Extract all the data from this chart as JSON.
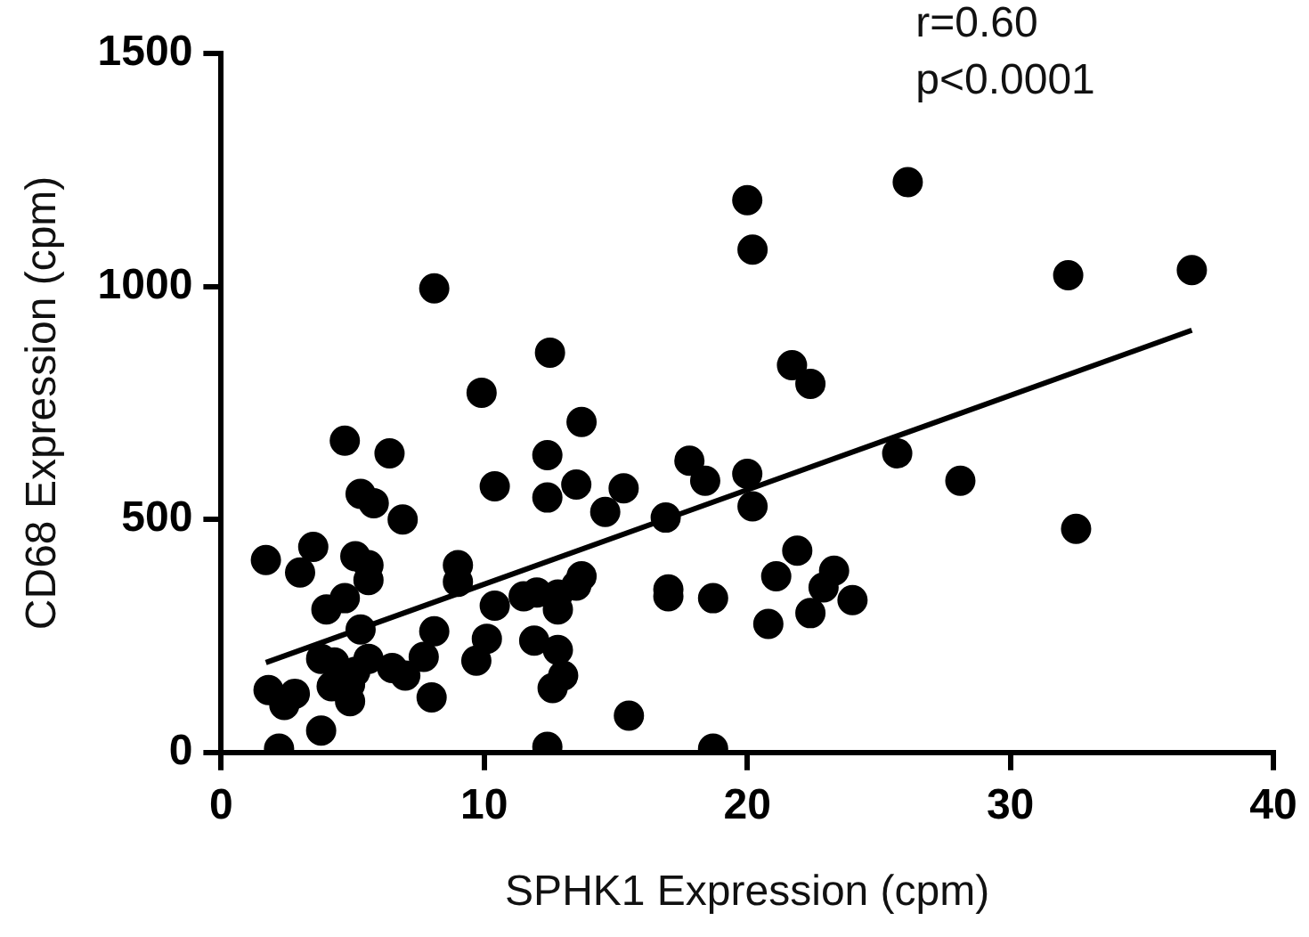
{
  "chart_data": {
    "type": "scatter",
    "xlabel": "SPHK1 Expression (cpm)",
    "ylabel": "CD68 Expression (cpm)",
    "xlim": [
      0,
      40
    ],
    "xticks": [
      0,
      10,
      20,
      30,
      40
    ],
    "ylim": [
      0,
      1500
    ],
    "yticks": [
      0,
      500,
      1000,
      1500
    ],
    "grid": false,
    "legend": false,
    "marker": "circle",
    "annotations": [
      "r=0.60",
      "p<0.0001"
    ],
    "series": [
      {
        "color": "#000000",
        "x": [
          20.0,
          20.2,
          8.1,
          12.5,
          9.9,
          13.7,
          4.7,
          6.4,
          12.4,
          17.8,
          18.4,
          20.0,
          10.4,
          12.4,
          13.5,
          15.3,
          5.3,
          5.8,
          6.9,
          14.6,
          16.9,
          20.2,
          1.7,
          3.5,
          3.0,
          5.1,
          5.6,
          5.6,
          9.0,
          9.0,
          13.7,
          13.5,
          17.0,
          17.0,
          18.7,
          4.0,
          4.7,
          10.4,
          11.5,
          12.0,
          12.8,
          12.8,
          5.3,
          8.1,
          7.7,
          10.1,
          11.9,
          9.7,
          12.8,
          13.0,
          12.6,
          3.8,
          4.3,
          5.6,
          5.1,
          6.5,
          7.0,
          4.2,
          4.9,
          4.9,
          1.8,
          2.8,
          2.4,
          8.0,
          3.8,
          15.5,
          2.2,
          12.4,
          18.7,
          26.1,
          32.2,
          36.9,
          21.7,
          22.4,
          25.7,
          28.1,
          32.5,
          21.9,
          21.1,
          23.3,
          22.9,
          24.0,
          22.4,
          20.8
        ],
        "values": [
          1185,
          1079,
          996,
          858,
          772,
          709,
          669,
          642,
          638,
          626,
          583,
          598,
          571,
          547,
          575,
          567,
          555,
          535,
          500,
          516,
          504,
          528,
          413,
          441,
          386,
          421,
          402,
          370,
          402,
          366,
          378,
          358,
          350,
          335,
          331,
          307,
          331,
          315,
          335,
          343,
          339,
          307,
          264,
          260,
          205,
          244,
          240,
          197,
          220,
          165,
          138,
          201,
          193,
          201,
          173,
          181,
          165,
          142,
          146,
          110,
          134,
          126,
          102,
          118,
          47,
          79,
          8,
          12,
          8,
          1224,
          1024,
          1035,
          831,
          791,
          642,
          583,
          480,
          433,
          378,
          390,
          354,
          327,
          299,
          276
        ]
      },
      {
        "type": "line",
        "color": "#000000",
        "marker": "none",
        "line_style": "solid",
        "x": [
          1.7,
          36.9
        ],
        "values": [
          193,
          906
        ]
      }
    ]
  }
}
